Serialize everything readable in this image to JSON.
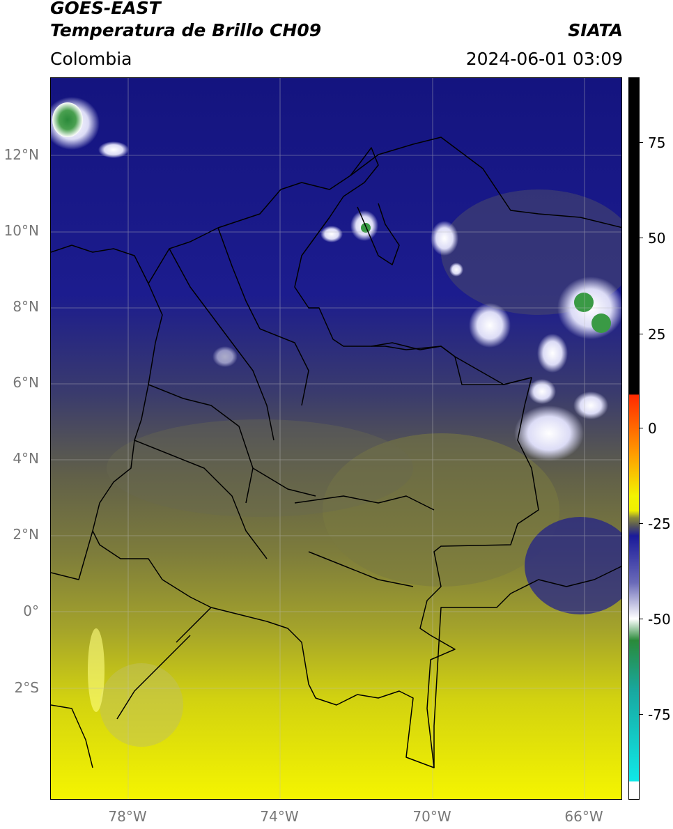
{
  "header": {
    "line1": "GOES-EAST",
    "line2": "Temperatura de Brillo CH09",
    "brand": "SIATA",
    "region": "Colombia",
    "datetime": "2024-06-01 03:09"
  },
  "axes": {
    "lat_labels": [
      "12°N",
      "10°N",
      "8°N",
      "6°N",
      "4°N",
      "2°N",
      "0°",
      "2°S"
    ],
    "lon_labels": [
      "78°W",
      "74°W",
      "70°W",
      "66°W"
    ]
  },
  "colorbar": {
    "tick_labels": [
      "75",
      "50",
      "25",
      "0",
      "-25",
      "-50",
      "-75"
    ],
    "colors": {
      "warm": "#f3f300",
      "mid": "#8a8a3a",
      "grey": "#5a5a55",
      "cold": "#1a1a9a",
      "very_cold": "#e8e8ff",
      "green": "#2a8a3a",
      "teal": "#18a8a0",
      "cyan": "#10e8e8",
      "red": "#ff2a00",
      "orange": "#ff9a00",
      "black": "#000000"
    }
  }
}
